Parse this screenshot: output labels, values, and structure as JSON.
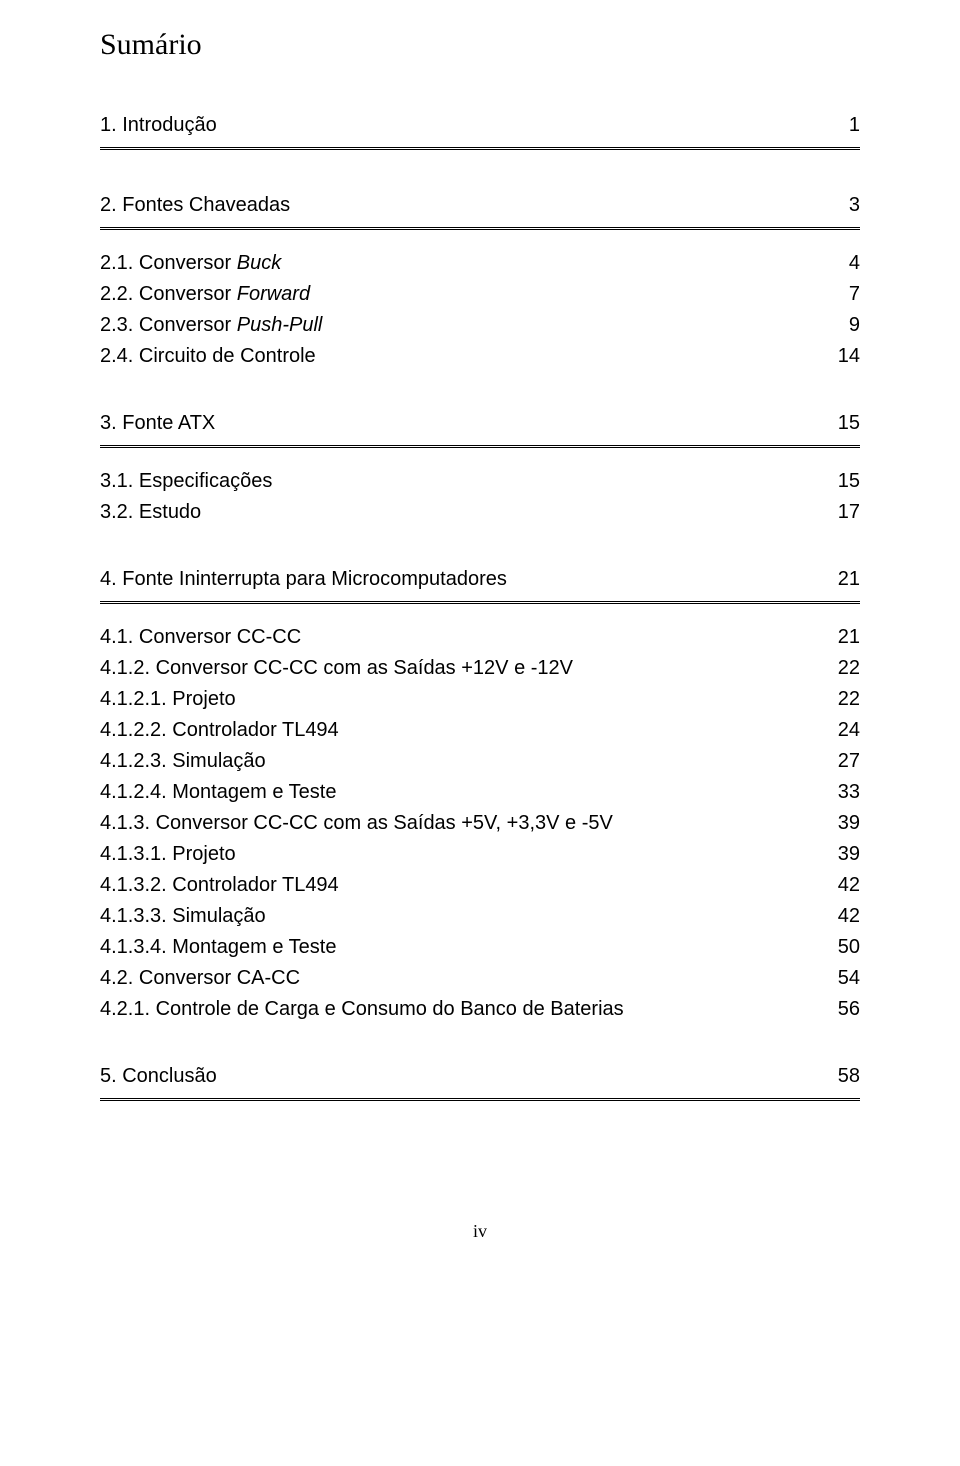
{
  "title": "Sumário",
  "footer": "iv",
  "sections": [
    {
      "heading_label": "1. Introdução",
      "heading_page": "1",
      "rows": []
    },
    {
      "heading_label": "2. Fontes Chaveadas",
      "heading_page": "3",
      "rows": [
        {
          "label_prefix": "2.1. Conversor ",
          "label_italic": "Buck",
          "label_suffix": "",
          "page": "4"
        },
        {
          "label_prefix": "2.2. Conversor ",
          "label_italic": "Forward",
          "label_suffix": "",
          "page": "7"
        },
        {
          "label_prefix": "2.3. Conversor ",
          "label_italic": "Push-Pull",
          "label_suffix": "",
          "page": "9"
        },
        {
          "label_prefix": "2.4. Circuito de Controle",
          "label_italic": "",
          "label_suffix": "",
          "page": "14"
        }
      ]
    },
    {
      "heading_label": "3. Fonte ATX",
      "heading_page": "15",
      "rows": [
        {
          "label_prefix": "3.1. Especificações",
          "label_italic": "",
          "label_suffix": "",
          "page": "15"
        },
        {
          "label_prefix": "3.2. Estudo",
          "label_italic": "",
          "label_suffix": "",
          "page": "17"
        }
      ]
    },
    {
      "heading_label": "4. Fonte Ininterrupta para Microcomputadores",
      "heading_page": "21",
      "rows": [
        {
          "label_prefix": "4.1. Conversor CC-CC",
          "label_italic": "",
          "label_suffix": "",
          "page": "21"
        },
        {
          "label_prefix": "4.1.2. Conversor CC-CC com as Saídas +12V e -12V",
          "label_italic": "",
          "label_suffix": "",
          "page": "22"
        },
        {
          "label_prefix": "4.1.2.1. Projeto",
          "label_italic": "",
          "label_suffix": "",
          "page": "22"
        },
        {
          "label_prefix": "4.1.2.2. Controlador TL494",
          "label_italic": "",
          "label_suffix": "",
          "page": "24"
        },
        {
          "label_prefix": "4.1.2.3. Simulação",
          "label_italic": "",
          "label_suffix": "",
          "page": "27"
        },
        {
          "label_prefix": "4.1.2.4. Montagem e Teste",
          "label_italic": "",
          "label_suffix": "",
          "page": "33"
        },
        {
          "label_prefix": "4.1.3. Conversor CC-CC com as Saídas +5V, +3,3V e -5V",
          "label_italic": "",
          "label_suffix": "",
          "page": "39"
        },
        {
          "label_prefix": "4.1.3.1. Projeto",
          "label_italic": "",
          "label_suffix": "",
          "page": "39"
        },
        {
          "label_prefix": "4.1.3.2. Controlador TL494",
          "label_italic": "",
          "label_suffix": "",
          "page": "42"
        },
        {
          "label_prefix": "4.1.3.3. Simulação",
          "label_italic": "",
          "label_suffix": "",
          "page": "42"
        },
        {
          "label_prefix": "4.1.3.4. Montagem e Teste",
          "label_italic": "",
          "label_suffix": "",
          "page": "50"
        },
        {
          "label_prefix": "4.2. Conversor CA-CC",
          "label_italic": "",
          "label_suffix": "",
          "page": "54"
        },
        {
          "label_prefix": "4.2.1. Controle de Carga e Consumo do Banco de Baterias",
          "label_italic": "",
          "label_suffix": "",
          "page": "56"
        }
      ]
    },
    {
      "heading_label": "5. Conclusão",
      "heading_page": "58",
      "rows": []
    }
  ]
}
